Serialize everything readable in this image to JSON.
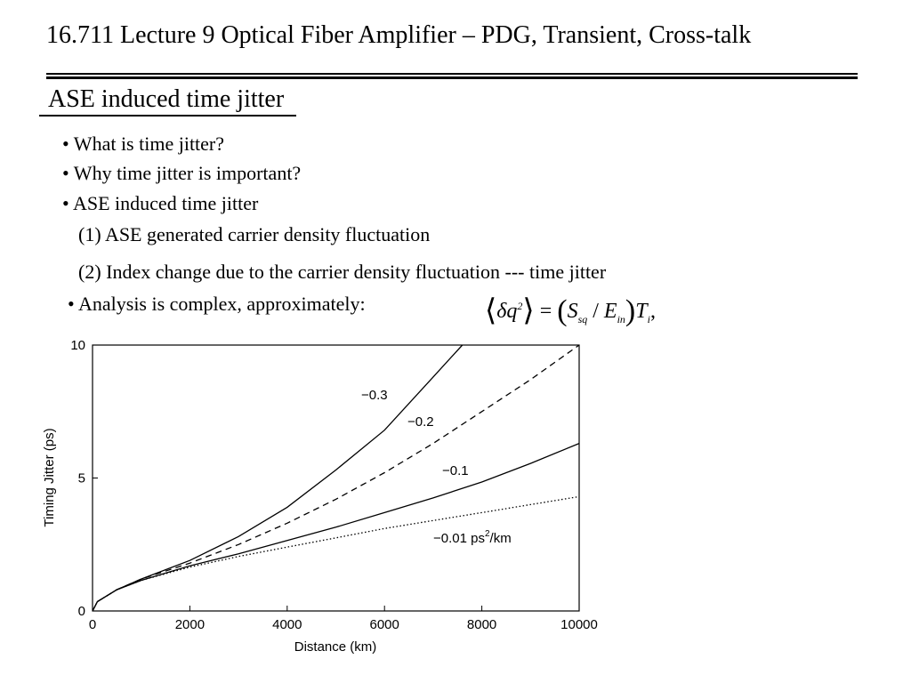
{
  "slide": {
    "title": "16.711 Lecture 9 Optical Fiber Amplifier – PDG, Transient, Cross-talk",
    "section_heading": "ASE induced time jitter",
    "bullets": [
      "• What is time jitter?",
      "• Why time jitter is important?",
      "• ASE induced time jitter",
      "(1) ASE generated carrier density fluctuation",
      "(2) Index change due to the carrier density fluctuation --- time jitter",
      "• Analysis is complex, approximately:"
    ],
    "formula": {
      "left_angle": "⟨",
      "delta_q": "δq",
      "exp": "2",
      "right_angle": "⟩",
      "equals": "=",
      "open_paren": "(",
      "S": "S",
      "S_sub": "sq",
      "slash": "/",
      "E": "E",
      "E_sub": "in",
      "close_paren": ")",
      "T": "T",
      "T_sub": "i",
      "comma": ","
    }
  },
  "chart_data": {
    "type": "line",
    "xlabel": "Distance (km)",
    "ylabel": "Timing Jitter (ps)",
    "xlim": [
      0,
      10000
    ],
    "ylim": [
      0,
      10
    ],
    "x_ticks": [
      0,
      2000,
      4000,
      6000,
      8000,
      10000
    ],
    "x_tick_labels": [
      "0",
      "2000",
      "4000",
      "6000",
      "8000",
      "10000"
    ],
    "y_ticks": [
      0,
      5,
      10
    ],
    "y_tick_labels": [
      "0",
      "5",
      "10"
    ],
    "grid": false,
    "series": [
      {
        "name": "−0.3",
        "style": "solid",
        "x": [
          0,
          100,
          500,
          1000,
          2000,
          3000,
          4000,
          5000,
          6000,
          7000,
          7600
        ],
        "y": [
          0,
          0.35,
          0.8,
          1.2,
          1.9,
          2.8,
          3.9,
          5.3,
          6.8,
          8.8,
          10.0
        ]
      },
      {
        "name": "−0.2",
        "style": "dashed",
        "x": [
          0,
          100,
          500,
          1000,
          2000,
          3000,
          4000,
          5000,
          6000,
          7000,
          8000,
          9000,
          10000
        ],
        "y": [
          0,
          0.35,
          0.8,
          1.2,
          1.8,
          2.5,
          3.3,
          4.2,
          5.2,
          6.3,
          7.5,
          8.7,
          10.0
        ]
      },
      {
        "name": "−0.1",
        "style": "solid",
        "x": [
          0,
          100,
          500,
          1000,
          2000,
          3000,
          4000,
          5000,
          6000,
          7000,
          8000,
          9000,
          10000
        ],
        "y": [
          0,
          0.35,
          0.8,
          1.15,
          1.7,
          2.15,
          2.65,
          3.15,
          3.7,
          4.25,
          4.85,
          5.55,
          6.3
        ]
      },
      {
        "name": "−0.01 ps²/km",
        "style": "dotted",
        "x": [
          0,
          100,
          500,
          1000,
          2000,
          3000,
          4000,
          5000,
          6000,
          7000,
          8000,
          9000,
          10000
        ],
        "y": [
          0,
          0.35,
          0.8,
          1.15,
          1.65,
          2.05,
          2.4,
          2.75,
          3.1,
          3.4,
          3.7,
          4.0,
          4.3
        ]
      }
    ],
    "annotations": [
      "−0.3",
      "−0.2",
      "−0.1",
      "−0.01 ps",
      "2",
      "/km"
    ]
  }
}
